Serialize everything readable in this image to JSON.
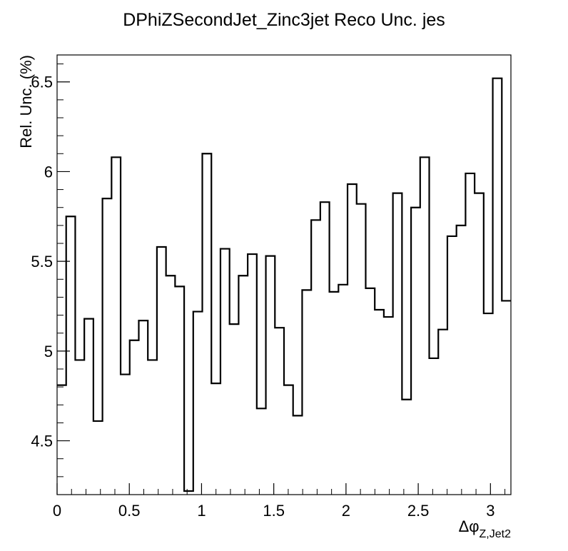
{
  "chart_data": {
    "type": "line",
    "style": "step histogram",
    "title": "DPhiZSecondJet_Zinc3jet Reco Unc. jes",
    "xlabel": "Δφ",
    "xlabel_subscript": "Z,Jet2",
    "ylabel": "Rel. Unc. (%)",
    "xlim": [
      0,
      3.1416
    ],
    "ylim": [
      4.2,
      6.65
    ],
    "x_ticks": [
      {
        "value": 0,
        "label": "0"
      },
      {
        "value": 0.5,
        "label": "0.5"
      },
      {
        "value": 1,
        "label": "1"
      },
      {
        "value": 1.5,
        "label": "1.5"
      },
      {
        "value": 2,
        "label": "2"
      },
      {
        "value": 2.5,
        "label": "2.5"
      },
      {
        "value": 3,
        "label": "3"
      }
    ],
    "y_ticks": [
      {
        "value": 4.5,
        "label": "4.5"
      },
      {
        "value": 5,
        "label": "5"
      },
      {
        "value": 5.5,
        "label": "5.5"
      },
      {
        "value": 6,
        "label": "6"
      },
      {
        "value": 6.5,
        "label": "6.5"
      }
    ],
    "grid": false,
    "legend": "none",
    "bins": 50,
    "values": [
      4.81,
      5.75,
      4.95,
      5.18,
      4.61,
      5.85,
      6.08,
      4.87,
      5.06,
      5.17,
      4.95,
      5.58,
      5.42,
      5.36,
      4.22,
      5.22,
      6.1,
      4.82,
      5.57,
      5.15,
      5.42,
      5.54,
      4.68,
      5.53,
      5.13,
      4.81,
      4.64,
      5.34,
      5.73,
      5.83,
      5.33,
      5.37,
      5.93,
      5.82,
      5.35,
      5.23,
      5.19,
      5.88,
      4.73,
      5.8,
      6.08,
      4.96,
      5.12,
      5.64,
      5.7,
      5.99,
      5.88,
      5.21,
      6.52,
      5.28
    ]
  }
}
